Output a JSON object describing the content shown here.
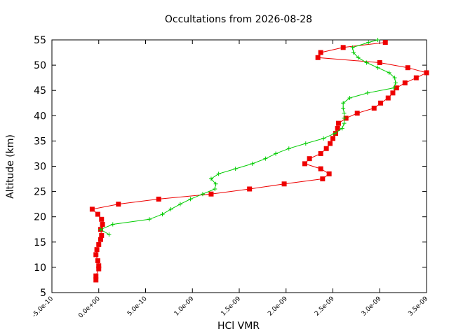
{
  "chart_data": {
    "type": "line",
    "title": "Occultations from 2026-08-28",
    "xlabel": "HCl VMR",
    "ylabel": "Altitude (km)",
    "xlim": [
      -5e-10,
      3.5e-09
    ],
    "ylim": [
      5,
      55
    ],
    "x_ticks": [
      "-5.0e-10",
      "0.0e+00",
      "5.0e-10",
      "1.0e-09",
      "1.5e-09",
      "2.0e-09",
      "2.5e-09",
      "3.0e-09",
      "3.5e-09"
    ],
    "x_tick_values": [
      -5e-10,
      0,
      5e-10,
      1e-09,
      1.5e-09,
      2e-09,
      2.5e-09,
      3e-09,
      3.5e-09
    ],
    "y_ticks": [
      "5",
      "10",
      "15",
      "20",
      "25",
      "30",
      "35",
      "40",
      "45",
      "50",
      "55"
    ],
    "y_tick_values": [
      5,
      10,
      15,
      20,
      25,
      30,
      35,
      40,
      45,
      50,
      55
    ],
    "grid": false,
    "legend": "none",
    "series": [
      {
        "color": "#ee0000",
        "marker": "square",
        "points": [
          {
            "x": -3e-11,
            "y": 7.5
          },
          {
            "x": -3e-11,
            "y": 8.3
          },
          {
            "x": 0.0,
            "y": 9.7
          },
          {
            "x": 0.0,
            "y": 10.3
          },
          {
            "x": -1e-11,
            "y": 11.3
          },
          {
            "x": -3e-11,
            "y": 12.5
          },
          {
            "x": -2e-11,
            "y": 13.5
          },
          {
            "x": 0.0,
            "y": 14.5
          },
          {
            "x": 2e-11,
            "y": 15.5
          },
          {
            "x": 3e-11,
            "y": 16.3
          },
          {
            "x": 2e-11,
            "y": 17.5
          },
          {
            "x": 4e-11,
            "y": 18.5
          },
          {
            "x": 3e-11,
            "y": 19.5
          },
          {
            "x": -1e-11,
            "y": 20.5
          },
          {
            "x": -7e-11,
            "y": 21.5
          },
          {
            "x": 2.1e-10,
            "y": 22.5
          },
          {
            "x": 6.4e-10,
            "y": 23.5
          },
          {
            "x": 1.2e-09,
            "y": 24.5
          },
          {
            "x": 1.61e-09,
            "y": 25.5
          },
          {
            "x": 1.98e-09,
            "y": 26.5
          },
          {
            "x": 2.39e-09,
            "y": 27.5
          },
          {
            "x": 2.46e-09,
            "y": 28.5
          },
          {
            "x": 2.37e-09,
            "y": 29.5
          },
          {
            "x": 2.2e-09,
            "y": 30.5
          },
          {
            "x": 2.25e-09,
            "y": 31.5
          },
          {
            "x": 2.37e-09,
            "y": 32.5
          },
          {
            "x": 2.43e-09,
            "y": 33.5
          },
          {
            "x": 2.47e-09,
            "y": 34.5
          },
          {
            "x": 2.5e-09,
            "y": 35.5
          },
          {
            "x": 2.53e-09,
            "y": 36.5
          },
          {
            "x": 2.55e-09,
            "y": 37.5
          },
          {
            "x": 2.56e-09,
            "y": 38.5
          },
          {
            "x": 2.64e-09,
            "y": 39.5
          },
          {
            "x": 2.76e-09,
            "y": 40.5
          },
          {
            "x": 2.94e-09,
            "y": 41.5
          },
          {
            "x": 3.01e-09,
            "y": 42.5
          },
          {
            "x": 3.09e-09,
            "y": 43.5
          },
          {
            "x": 3.14e-09,
            "y": 44.5
          },
          {
            "x": 3.18e-09,
            "y": 45.5
          },
          {
            "x": 3.27e-09,
            "y": 46.5
          },
          {
            "x": 3.39e-09,
            "y": 47.5
          },
          {
            "x": 3.5e-09,
            "y": 48.5
          },
          {
            "x": 3.3e-09,
            "y": 49.5
          },
          {
            "x": 3e-09,
            "y": 50.5
          },
          {
            "x": 2.34e-09,
            "y": 51.5
          },
          {
            "x": 2.37e-09,
            "y": 52.5
          },
          {
            "x": 2.61e-09,
            "y": 53.5
          },
          {
            "x": 3.06e-09,
            "y": 54.5
          }
        ]
      },
      {
        "color": "#00cc00",
        "marker": "plus",
        "points": [
          {
            "x": 1.1e-10,
            "y": 16.5
          },
          {
            "x": 2e-11,
            "y": 17.5
          },
          {
            "x": 1.5e-10,
            "y": 18.5
          },
          {
            "x": 5.4e-10,
            "y": 19.5
          },
          {
            "x": 6.8e-10,
            "y": 20.5
          },
          {
            "x": 7.7e-10,
            "y": 21.5
          },
          {
            "x": 8.7e-10,
            "y": 22.5
          },
          {
            "x": 9.8e-10,
            "y": 23.5
          },
          {
            "x": 1.11e-09,
            "y": 24.5
          },
          {
            "x": 1.24e-09,
            "y": 25.5
          },
          {
            "x": 1.25e-09,
            "y": 26.5
          },
          {
            "x": 1.2e-09,
            "y": 27.5
          },
          {
            "x": 1.28e-09,
            "y": 28.5
          },
          {
            "x": 1.46e-09,
            "y": 29.5
          },
          {
            "x": 1.64e-09,
            "y": 30.5
          },
          {
            "x": 1.78e-09,
            "y": 31.5
          },
          {
            "x": 1.89e-09,
            "y": 32.5
          },
          {
            "x": 2.03e-09,
            "y": 33.5
          },
          {
            "x": 2.21e-09,
            "y": 34.5
          },
          {
            "x": 2.4e-09,
            "y": 35.5
          },
          {
            "x": 2.52e-09,
            "y": 36.5
          },
          {
            "x": 2.6e-09,
            "y": 37.5
          },
          {
            "x": 2.62e-09,
            "y": 38.5
          },
          {
            "x": 2.62e-09,
            "y": 39.5
          },
          {
            "x": 2.62e-09,
            "y": 40.5
          },
          {
            "x": 2.61e-09,
            "y": 41.5
          },
          {
            "x": 2.61e-09,
            "y": 42.5
          },
          {
            "x": 2.68e-09,
            "y": 43.5
          },
          {
            "x": 2.87e-09,
            "y": 44.5
          },
          {
            "x": 3.15e-09,
            "y": 45.5
          },
          {
            "x": 3.17e-09,
            "y": 46.5
          },
          {
            "x": 3.16e-09,
            "y": 47.5
          },
          {
            "x": 3.1e-09,
            "y": 48.5
          },
          {
            "x": 2.98e-09,
            "y": 49.5
          },
          {
            "x": 2.86e-09,
            "y": 50.5
          },
          {
            "x": 2.77e-09,
            "y": 51.5
          },
          {
            "x": 2.72e-09,
            "y": 52.5
          },
          {
            "x": 2.71e-09,
            "y": 53.5
          },
          {
            "x": 2.88e-09,
            "y": 54.5
          },
          {
            "x": 2.98e-09,
            "y": 55.0
          }
        ]
      }
    ]
  }
}
